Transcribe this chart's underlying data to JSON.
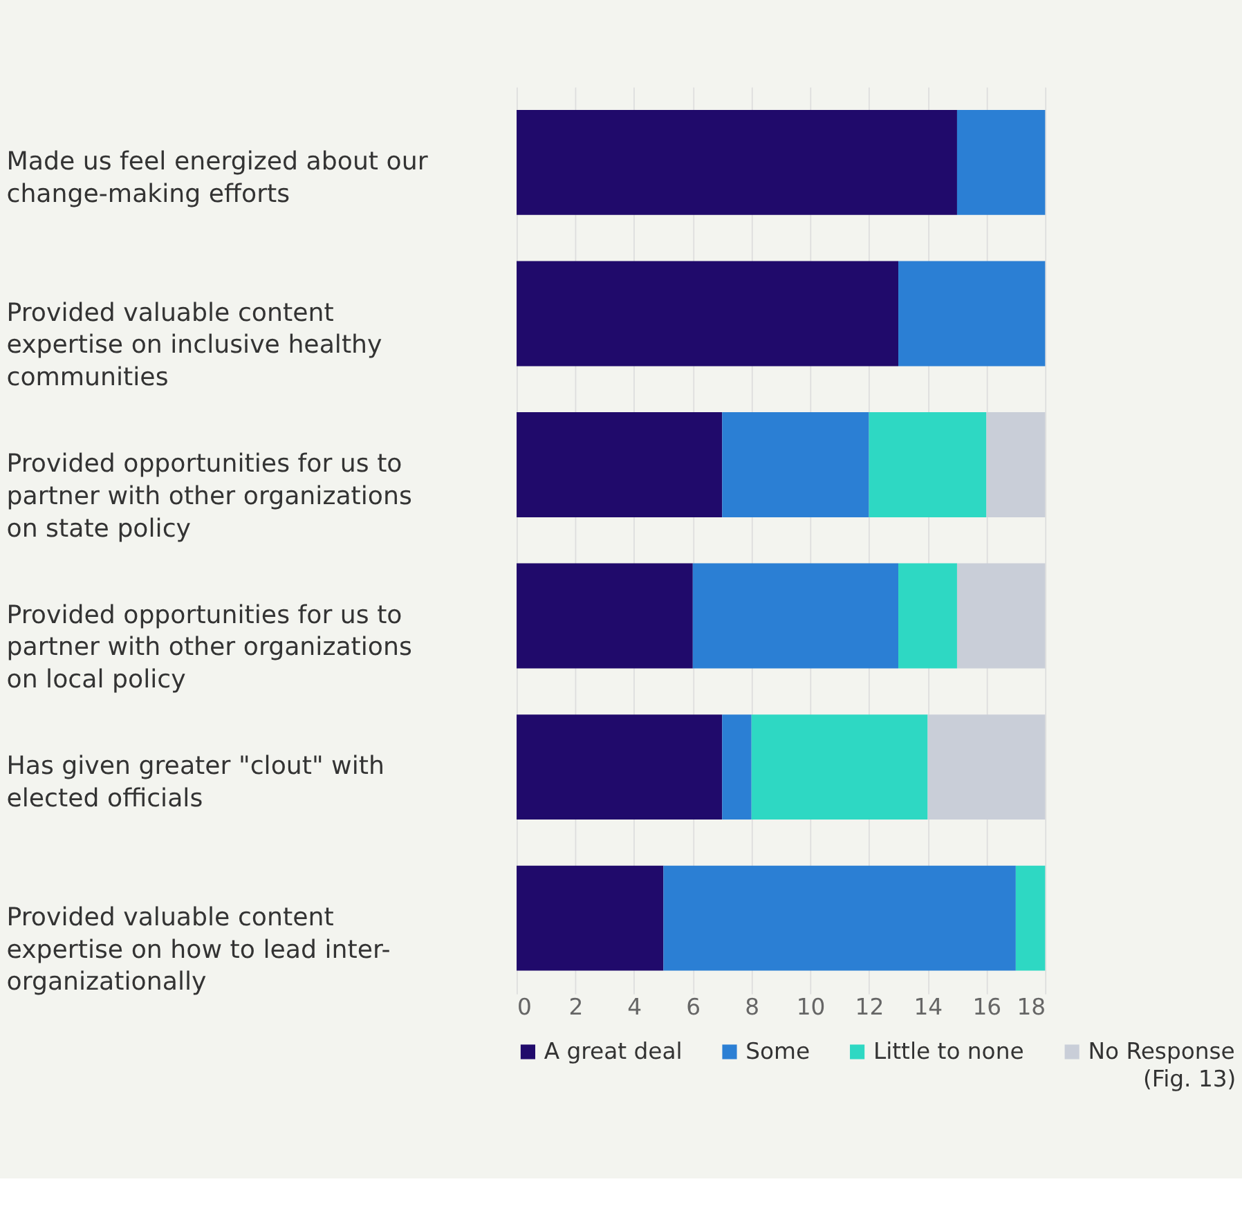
{
  "chart_data": {
    "type": "bar",
    "orientation": "horizontal",
    "stacked": true,
    "categories": [
      "Made us feel energized about our change-making efforts",
      "Provided valuable content expertise on inclusive healthy communities",
      "Provided opportunities for us to partner with other organizations on state policy",
      "Provided opportunities for us to partner with other organizations on local policy",
      "Has given greater \"clout\" with elected officials",
      "Provided valuable content expertise on how to lead inter-organizationally"
    ],
    "series": [
      {
        "name": "A great deal",
        "color": "#200a6b",
        "values": [
          15,
          13,
          7,
          6,
          7,
          5
        ]
      },
      {
        "name": "Some",
        "color": "#2b7fd4",
        "values": [
          3,
          5,
          5,
          7,
          1,
          12
        ]
      },
      {
        "name": "Little to none",
        "color": "#2ed8c3",
        "values": [
          0,
          0,
          4,
          2,
          6,
          1
        ]
      },
      {
        "name": "No Response",
        "color": "#c9ced8",
        "values": [
          0,
          0,
          2,
          3,
          4,
          0
        ]
      }
    ],
    "xlim": [
      0,
      18
    ],
    "xticks": [
      0,
      2,
      4,
      6,
      8,
      10,
      12,
      14,
      16,
      18
    ],
    "grid": true,
    "legend": "bottom",
    "annotations": [
      "(Fig. 13)"
    ]
  }
}
